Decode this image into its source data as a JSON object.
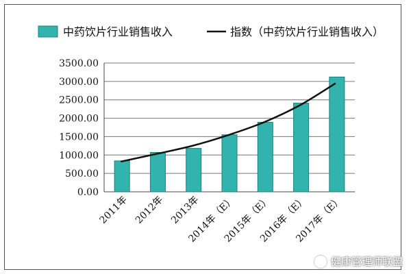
{
  "chart_data": {
    "type": "bar",
    "categories": [
      "2011年",
      "2012年",
      "2013年",
      "2014年（E）",
      "2015年（E）",
      "2016年（E）",
      "2017年（E）"
    ],
    "series": [
      {
        "name": "中药饮片行业销售收入",
        "type": "bar",
        "color": "#33b3ad",
        "values": [
          840,
          1070,
          1180,
          1550,
          1890,
          2410,
          3120
        ]
      },
      {
        "name": "指数（中药饮片行业销售收入）",
        "type": "line",
        "color": "#111111",
        "values": [
          820,
          1030,
          1250,
          1540,
          1890,
          2350,
          2950
        ]
      }
    ],
    "y_ticks": [
      "0.00",
      "500.00",
      "1000.00",
      "1500.00",
      "2000.00",
      "2500.00",
      "3000.00",
      "3500.00"
    ],
    "ylim": [
      0,
      3500
    ],
    "grid": true,
    "legend": "top"
  },
  "watermark": "健康管理师联盟"
}
